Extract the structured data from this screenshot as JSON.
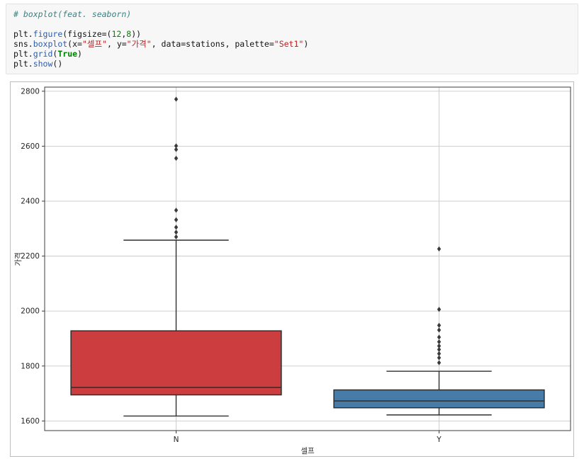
{
  "code_cell": {
    "lines": [
      {
        "tokens": [
          {
            "text": "# boxplot(feat. seaborn)",
            "type": "comment"
          }
        ]
      },
      {
        "tokens": []
      },
      {
        "tokens": [
          {
            "text": "plt.",
            "type": "plain"
          },
          {
            "text": "figure",
            "type": "func"
          },
          {
            "text": "(figsize=(",
            "type": "plain"
          },
          {
            "text": "12",
            "type": "number"
          },
          {
            "text": ",",
            "type": "plain"
          },
          {
            "text": "8",
            "type": "number"
          },
          {
            "text": "))",
            "type": "plain"
          }
        ]
      },
      {
        "tokens": [
          {
            "text": "sns.",
            "type": "plain"
          },
          {
            "text": "boxplot",
            "type": "func"
          },
          {
            "text": "(x=",
            "type": "plain"
          },
          {
            "text": "\"셀프\"",
            "type": "string"
          },
          {
            "text": ", y=",
            "type": "plain"
          },
          {
            "text": "\"가격\"",
            "type": "string"
          },
          {
            "text": ", data=stations, palette=",
            "type": "plain"
          },
          {
            "text": "\"Set1\"",
            "type": "string"
          },
          {
            "text": ")",
            "type": "plain"
          }
        ]
      },
      {
        "tokens": [
          {
            "text": "plt.",
            "type": "plain"
          },
          {
            "text": "grid",
            "type": "func"
          },
          {
            "text": "(",
            "type": "plain"
          },
          {
            "text": "True",
            "type": "keyword"
          },
          {
            "text": ")",
            "type": "plain"
          }
        ]
      },
      {
        "tokens": [
          {
            "text": "plt.",
            "type": "plain"
          },
          {
            "text": "show",
            "type": "func"
          },
          {
            "text": "()",
            "type": "plain"
          }
        ]
      }
    ]
  },
  "chart_data": {
    "type": "boxplot",
    "title": "",
    "xlabel": "셀프",
    "ylabel": "가격",
    "categories": [
      "N",
      "Y"
    ],
    "yticks": [
      1600,
      1800,
      2000,
      2200,
      2400,
      2600,
      2800
    ],
    "ylim": [
      1565,
      2815
    ],
    "grid": true,
    "grid_color": "#c9c9c9",
    "spine_color": "#3c3c3c",
    "edge_color": "#2f2f2f",
    "outlier_color": "#3b3b3b",
    "palette": "Set1",
    "legend": "none",
    "series": [
      {
        "category": "N",
        "color": "#cb3d3e",
        "whisker_low": 1618,
        "q1": 1695,
        "median": 1722,
        "q3": 1928,
        "whisker_high": 2258,
        "outliers": [
          2270,
          2287,
          2305,
          2332,
          2367,
          2556,
          2588,
          2601,
          2771
        ]
      },
      {
        "category": "Y",
        "color": "#477ca8",
        "whisker_low": 1622,
        "q1": 1648,
        "median": 1673,
        "q3": 1713,
        "whisker_high": 1781,
        "outliers": [
          1812,
          1830,
          1845,
          1860,
          1873,
          1888,
          1905,
          1931,
          1948,
          2006,
          2226
        ]
      }
    ]
  }
}
